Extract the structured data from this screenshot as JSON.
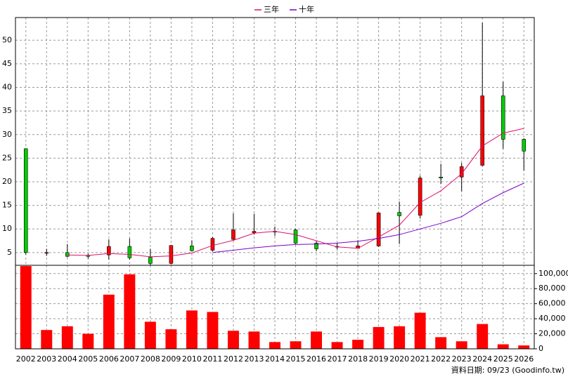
{
  "chart_data": {
    "type": "candlestick",
    "categories": [
      "2002",
      "2003",
      "2004",
      "2005",
      "2006",
      "2007",
      "2008",
      "2009",
      "2010",
      "2011",
      "2012",
      "2013",
      "2014",
      "2015",
      "2016",
      "2017",
      "2018",
      "2019",
      "2020",
      "2021",
      "2022",
      "2023",
      "2024",
      "2025",
      "2026"
    ],
    "open": [
      27,
      5,
      5,
      4.4,
      4.5,
      6.3,
      4,
      2.7,
      6.4,
      5.5,
      7.8,
      9.2,
      9.5,
      9.8,
      7,
      6.3,
      5.9,
      6.4,
      13.5,
      12.9,
      21,
      21,
      23.5,
      38.2,
      29
    ],
    "high": [
      27,
      5.8,
      6.8,
      4.8,
      7.8,
      8,
      5.8,
      6.5,
      7.6,
      8.3,
      13.3,
      13.2,
      10.5,
      10,
      7.5,
      7,
      7.6,
      13.5,
      15.8,
      21.3,
      23.8,
      24,
      53.7,
      41.2,
      29.2
    ],
    "low": [
      4.6,
      4.3,
      4,
      3.7,
      3.5,
      3.5,
      2.3,
      2.5,
      5.2,
      5.2,
      7.5,
      8.8,
      8.5,
      6.8,
      5.3,
      5.7,
      5.9,
      6.2,
      6.8,
      12.2,
      19.5,
      18,
      23.3,
      27,
      22.4
    ],
    "close": [
      5,
      5,
      4.2,
      4.2,
      6.3,
      3.9,
      2.7,
      6.5,
      5.4,
      8,
      9.8,
      9.5,
      9.4,
      7,
      5.8,
      6.2,
      6.4,
      13.4,
      12.8,
      20.8,
      20.8,
      23.2,
      38.2,
      29,
      26.5
    ],
    "up_color": "#ff0000",
    "down_color": "#00cc00",
    "lines": [
      {
        "name": "三年",
        "color": "#e0106a",
        "values": [
          null,
          null,
          4.5,
          4.4,
          4.8,
          4.6,
          4.1,
          4.3,
          4.9,
          6.5,
          7.6,
          9.1,
          9.5,
          8.8,
          7.5,
          6.2,
          5.9,
          8.3,
          10.8,
          15.6,
          18.1,
          21.7,
          27.6,
          30.3,
          31.3
        ]
      },
      {
        "name": "十年",
        "color": "#7a00cc",
        "values": [
          null,
          null,
          null,
          null,
          null,
          null,
          null,
          null,
          null,
          5,
          5.5,
          6,
          6.4,
          6.7,
          6.8,
          7,
          7.4,
          8,
          8.8,
          10,
          11.2,
          12.6,
          15.4,
          17.7,
          19.7
        ]
      }
    ],
    "volume": {
      "axis": "y2",
      "color": "#ff0000",
      "values": [
        110000,
        25000,
        30000,
        20000,
        72000,
        99000,
        36000,
        26000,
        51000,
        49000,
        24000,
        23000,
        9000,
        10000,
        23000,
        9000,
        12000,
        29000,
        30000,
        48000,
        15500,
        10000,
        33000,
        6000,
        4500
      ]
    },
    "ylim": [
      2.3,
      54.8
    ],
    "yticks": [
      5,
      10,
      15,
      20,
      25,
      30,
      35,
      40,
      45,
      50
    ],
    "y2lim": [
      0,
      111000
    ],
    "y2ticks": [
      0,
      {
        "value": 20000,
        "label": "20,000"
      },
      {
        "value": 40000,
        "label": "40,000"
      },
      {
        "value": 60000,
        "label": "60,000"
      },
      {
        "value": 80000,
        "label": "80,000"
      },
      {
        "value": 100000,
        "label": "100,000"
      }
    ],
    "grid": true,
    "legend": "top",
    "source": "資料日期: 09/23 (Goodinfo.tw)"
  }
}
